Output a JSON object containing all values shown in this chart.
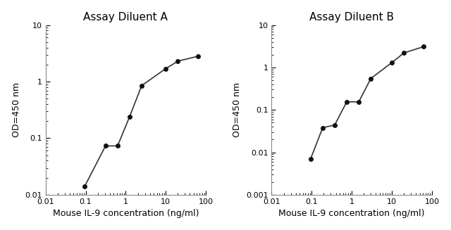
{
  "panel_A": {
    "title": "Assay Diluent A",
    "x": [
      0.094,
      0.313,
      0.625,
      1.25,
      2.5,
      10,
      20,
      62.5
    ],
    "y": [
      0.014,
      0.073,
      0.073,
      0.24,
      0.85,
      1.7,
      2.3,
      2.8
    ],
    "xlim": [
      0.01,
      100
    ],
    "ylim": [
      0.01,
      10
    ],
    "xlabel": "Mouse IL-9 concentration (ng/ml)",
    "ylabel": "OD=450 nm",
    "xtick_vals": [
      0.01,
      0.1,
      1,
      10,
      100
    ],
    "xtick_labels": [
      "0.01",
      "0.1",
      "1",
      "10",
      "100"
    ],
    "ytick_vals": [
      0.01,
      0.1,
      1,
      10
    ],
    "ytick_labels": [
      "0.01",
      "0.1",
      "1",
      "10"
    ]
  },
  "panel_B": {
    "title": "Assay Diluent B",
    "x": [
      0.094,
      0.188,
      0.375,
      0.75,
      1.5,
      3.0,
      10,
      20,
      62.5
    ],
    "y": [
      0.007,
      0.038,
      0.044,
      0.155,
      0.155,
      0.55,
      1.3,
      2.2,
      3.1
    ],
    "xlim": [
      0.01,
      100
    ],
    "ylim": [
      0.001,
      10
    ],
    "xlabel": "Mouse IL-9 concentration (ng/ml)",
    "ylabel": "OD=450 nm",
    "xtick_vals": [
      0.01,
      0.1,
      1,
      10,
      100
    ],
    "xtick_labels": [
      "0.01",
      "0.1",
      "1",
      "10",
      "100"
    ],
    "ytick_vals": [
      0.001,
      0.01,
      0.1,
      1,
      10
    ],
    "ytick_labels": [
      "0.001",
      "0.01",
      "0.1",
      "1",
      "10"
    ]
  },
  "line_color": "#333333",
  "marker": "o",
  "markersize": 4,
  "linewidth": 1.2,
  "markerfacecolor": "#111111",
  "title_fontsize": 11,
  "label_fontsize": 9,
  "tick_fontsize": 8,
  "bg_color": "#ffffff"
}
